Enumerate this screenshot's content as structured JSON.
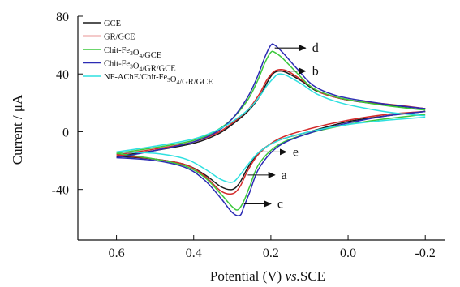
{
  "chart_data": {
    "type": "line",
    "xlabel": "Potential (V) vs.SCE",
    "xlabel_parts": [
      "Potential (V) ",
      "vs.",
      "SCE"
    ],
    "ylabel": "Current / μA",
    "x_reversed": true,
    "xlim": [
      0.7,
      -0.25
    ],
    "ylim": [
      -75,
      80
    ],
    "x_ticks": [
      0.6,
      0.4,
      0.2,
      0.0,
      -0.2
    ],
    "x_tick_labels": [
      "0.6",
      "0.4",
      "0.2",
      "0.0",
      "-0.2"
    ],
    "y_ticks": [
      80,
      40,
      0,
      -40
    ],
    "y_tick_labels": [
      "80",
      "40",
      "0",
      "-40"
    ],
    "legend_position": "top-left",
    "series": [
      {
        "name": "GCE",
        "name_parts": [
          [
            "GCE",
            ""
          ]
        ],
        "color": "#1a1a1a",
        "forward": [
          [
            0.6,
            -17
          ],
          [
            0.5,
            -13
          ],
          [
            0.4,
            -8
          ],
          [
            0.34,
            -2
          ],
          [
            0.3,
            5
          ],
          [
            0.26,
            14
          ],
          [
            0.23,
            24
          ],
          [
            0.21,
            34
          ],
          [
            0.195,
            40
          ],
          [
            0.18,
            42
          ],
          [
            0.16,
            41
          ],
          [
            0.12,
            35
          ],
          [
            0.08,
            28
          ],
          [
            0.02,
            23
          ],
          [
            -0.05,
            20
          ],
          [
            -0.12,
            18
          ],
          [
            -0.2,
            16
          ]
        ],
        "reverse": [
          [
            -0.2,
            14
          ],
          [
            -0.1,
            11
          ],
          [
            0.0,
            7
          ],
          [
            0.1,
            0
          ],
          [
            0.18,
            -6
          ],
          [
            0.23,
            -14
          ],
          [
            0.26,
            -25
          ],
          [
            0.28,
            -35
          ],
          [
            0.3,
            -40
          ],
          [
            0.33,
            -38
          ],
          [
            0.37,
            -30
          ],
          [
            0.42,
            -23
          ],
          [
            0.5,
            -19
          ],
          [
            0.6,
            -17
          ]
        ]
      },
      {
        "name": "GR/GCE",
        "name_parts": [
          [
            "GR/GCE",
            ""
          ]
        ],
        "color": "#d42a2a",
        "forward": [
          [
            0.6,
            -16
          ],
          [
            0.5,
            -12
          ],
          [
            0.4,
            -7
          ],
          [
            0.34,
            -1
          ],
          [
            0.3,
            6
          ],
          [
            0.26,
            15
          ],
          [
            0.23,
            26
          ],
          [
            0.21,
            36
          ],
          [
            0.19,
            42
          ],
          [
            0.17,
            43
          ],
          [
            0.15,
            41
          ],
          [
            0.11,
            34
          ],
          [
            0.07,
            27
          ],
          [
            0.0,
            22
          ],
          [
            -0.07,
            20
          ],
          [
            -0.14,
            18
          ],
          [
            -0.2,
            16
          ]
        ],
        "reverse": [
          [
            -0.2,
            14
          ],
          [
            -0.1,
            12
          ],
          [
            0.0,
            8
          ],
          [
            0.1,
            2
          ],
          [
            0.18,
            -5
          ],
          [
            0.23,
            -15
          ],
          [
            0.26,
            -27
          ],
          [
            0.28,
            -38
          ],
          [
            0.3,
            -43
          ],
          [
            0.33,
            -41
          ],
          [
            0.37,
            -31
          ],
          [
            0.42,
            -23
          ],
          [
            0.5,
            -19
          ],
          [
            0.6,
            -16
          ]
        ]
      },
      {
        "name": "Chit-Fe3O4/GCE",
        "name_parts": [
          [
            "Chit-Fe",
            ""
          ],
          [
            "3",
            "sub"
          ],
          [
            "O",
            ""
          ],
          [
            "4",
            "sub"
          ],
          [
            "/GCE",
            ""
          ]
        ],
        "color": "#3cc83c",
        "forward": [
          [
            0.6,
            -15
          ],
          [
            0.5,
            -11
          ],
          [
            0.4,
            -6
          ],
          [
            0.34,
            1
          ],
          [
            0.3,
            9
          ],
          [
            0.26,
            22
          ],
          [
            0.235,
            35
          ],
          [
            0.215,
            48
          ],
          [
            0.2,
            55
          ],
          [
            0.19,
            55
          ],
          [
            0.17,
            51
          ],
          [
            0.13,
            40
          ],
          [
            0.09,
            30
          ],
          [
            0.03,
            24
          ],
          [
            -0.05,
            20
          ],
          [
            -0.13,
            17
          ],
          [
            -0.2,
            15
          ]
        ],
        "reverse": [
          [
            -0.2,
            12
          ],
          [
            -0.1,
            9
          ],
          [
            0.0,
            5
          ],
          [
            0.1,
            -1
          ],
          [
            0.18,
            -9
          ],
          [
            0.23,
            -22
          ],
          [
            0.255,
            -38
          ],
          [
            0.27,
            -48
          ],
          [
            0.285,
            -54
          ],
          [
            0.3,
            -52
          ],
          [
            0.33,
            -43
          ],
          [
            0.37,
            -32
          ],
          [
            0.42,
            -24
          ],
          [
            0.5,
            -19
          ],
          [
            0.6,
            -15
          ]
        ]
      },
      {
        "name": "Chit-Fe3O4/GR/GCE",
        "name_parts": [
          [
            "Chit-Fe",
            ""
          ],
          [
            "3",
            "sub"
          ],
          [
            "O",
            ""
          ],
          [
            "4",
            "sub"
          ],
          [
            "/GR/GCE",
            ""
          ]
        ],
        "color": "#2b2bb4",
        "forward": [
          [
            0.6,
            -18
          ],
          [
            0.5,
            -13
          ],
          [
            0.4,
            -7
          ],
          [
            0.34,
            0
          ],
          [
            0.3,
            9
          ],
          [
            0.26,
            24
          ],
          [
            0.235,
            38
          ],
          [
            0.215,
            52
          ],
          [
            0.2,
            60
          ],
          [
            0.19,
            60
          ],
          [
            0.17,
            55
          ],
          [
            0.13,
            43
          ],
          [
            0.09,
            32
          ],
          [
            0.03,
            25
          ],
          [
            -0.05,
            21
          ],
          [
            -0.13,
            18
          ],
          [
            -0.2,
            16
          ]
        ],
        "reverse": [
          [
            -0.2,
            14
          ],
          [
            -0.1,
            11
          ],
          [
            0.0,
            6
          ],
          [
            0.1,
            -1
          ],
          [
            0.18,
            -10
          ],
          [
            0.23,
            -25
          ],
          [
            0.255,
            -42
          ],
          [
            0.27,
            -52
          ],
          [
            0.28,
            -58
          ],
          [
            0.3,
            -56
          ],
          [
            0.33,
            -46
          ],
          [
            0.37,
            -34
          ],
          [
            0.42,
            -25
          ],
          [
            0.5,
            -20
          ],
          [
            0.6,
            -18
          ]
        ]
      },
      {
        "name": "NF-AChE/Chit-Fe3O4/GR/GCE",
        "name_parts": [
          [
            "NF-AChE/Chit-Fe",
            ""
          ],
          [
            "3",
            "sub"
          ],
          [
            "O",
            ""
          ],
          [
            "4",
            "sub"
          ],
          [
            "/GR/GCE",
            ""
          ]
        ],
        "color": "#2ee0e0",
        "forward": [
          [
            0.6,
            -14
          ],
          [
            0.5,
            -10
          ],
          [
            0.4,
            -5
          ],
          [
            0.34,
            1
          ],
          [
            0.3,
            7
          ],
          [
            0.26,
            15
          ],
          [
            0.23,
            24
          ],
          [
            0.21,
            32
          ],
          [
            0.19,
            38
          ],
          [
            0.18,
            40
          ],
          [
            0.16,
            39
          ],
          [
            0.12,
            33
          ],
          [
            0.08,
            26
          ],
          [
            0.02,
            20
          ],
          [
            -0.05,
            16
          ],
          [
            -0.12,
            13
          ],
          [
            -0.2,
            11
          ]
        ],
        "reverse": [
          [
            -0.2,
            10
          ],
          [
            -0.1,
            8
          ],
          [
            0.0,
            5
          ],
          [
            0.1,
            0
          ],
          [
            0.18,
            -6
          ],
          [
            0.23,
            -14
          ],
          [
            0.26,
            -23
          ],
          [
            0.28,
            -30
          ],
          [
            0.3,
            -35
          ],
          [
            0.33,
            -33
          ],
          [
            0.37,
            -26
          ],
          [
            0.42,
            -19
          ],
          [
            0.5,
            -15
          ],
          [
            0.6,
            -14
          ]
        ]
      }
    ],
    "annotations": [
      {
        "label": "d",
        "series": "Chit-Fe3O4/GR/GCE",
        "at": [
          0.19,
          58
        ],
        "to": [
          0.11,
          58
        ]
      },
      {
        "label": "b",
        "series": "GR/GCE",
        "at": [
          0.18,
          42
        ],
        "to": [
          0.11,
          42
        ]
      },
      {
        "label": "e",
        "series": "NF-AChE/Chit-Fe3O4/GR/GCE",
        "at": [
          0.23,
          -14
        ],
        "to": [
          0.16,
          -14
        ]
      },
      {
        "label": "a",
        "series": "GCE",
        "at": [
          0.26,
          -30
        ],
        "to": [
          0.19,
          -30
        ]
      },
      {
        "label": "c",
        "series": "Chit-Fe3O4/GCE",
        "at": [
          0.27,
          -50
        ],
        "to": [
          0.2,
          -50
        ]
      }
    ]
  }
}
